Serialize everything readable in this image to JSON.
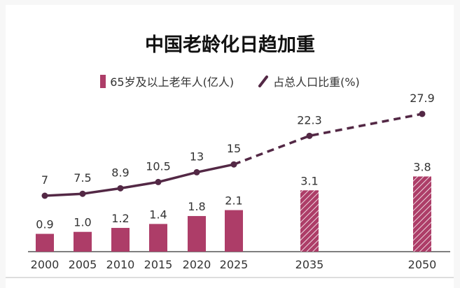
{
  "chart_data": {
    "type": "bar",
    "title": "中国老龄化日趋加重",
    "categories": [
      "2000",
      "2005",
      "2010",
      "2015",
      "2020",
      "2025",
      "2035",
      "2050"
    ],
    "series": [
      {
        "name": "65岁及以上老年人(亿人)",
        "type": "bar",
        "values": [
          0.9,
          1.0,
          1.2,
          1.4,
          1.8,
          2.1,
          3.1,
          3.8
        ],
        "labels": [
          "0.9",
          "1.0",
          "1.2",
          "1.4",
          "1.8",
          "2.1",
          "3.1",
          "3.8"
        ],
        "projected": [
          false,
          false,
          false,
          false,
          false,
          false,
          true,
          true
        ],
        "color": "#ad3d68"
      },
      {
        "name": "占总人口比重(%)",
        "type": "line",
        "values": [
          7,
          7.5,
          8.9,
          10.5,
          13,
          15,
          22.3,
          27.9
        ],
        "labels": [
          "7",
          "7.5",
          "8.9",
          "10.5",
          "13",
          "15",
          "22.3",
          "27.9"
        ],
        "projected": [
          false,
          false,
          false,
          false,
          false,
          false,
          true,
          true
        ],
        "color": "#532845"
      }
    ],
    "legend": "top-center",
    "grid": false
  }
}
